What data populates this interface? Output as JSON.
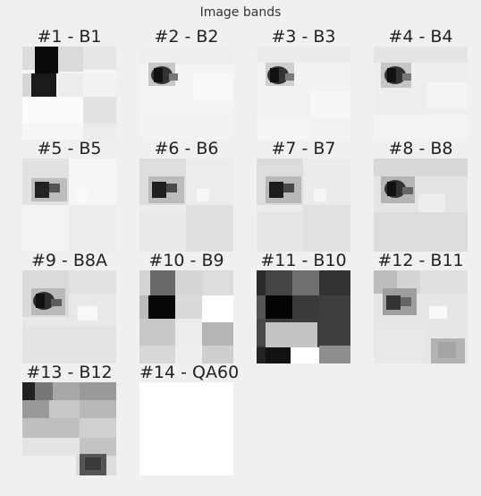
{
  "window": {
    "title": "Image bands"
  },
  "bands": [
    {
      "label": "#1 - B1"
    },
    {
      "label": "#2 - B2"
    },
    {
      "label": "#3 - B3"
    },
    {
      "label": "#4 - B4"
    },
    {
      "label": "#5 - B5"
    },
    {
      "label": "#6 - B6"
    },
    {
      "label": "#7 - B7"
    },
    {
      "label": "#8 - B8"
    },
    {
      "label": "#9 - B8A"
    },
    {
      "label": "#10 - B9"
    },
    {
      "label": "#11 - B10"
    },
    {
      "label": "#12 - B11"
    },
    {
      "label": "#13 - B12"
    },
    {
      "label": "#14 - QA60"
    }
  ]
}
